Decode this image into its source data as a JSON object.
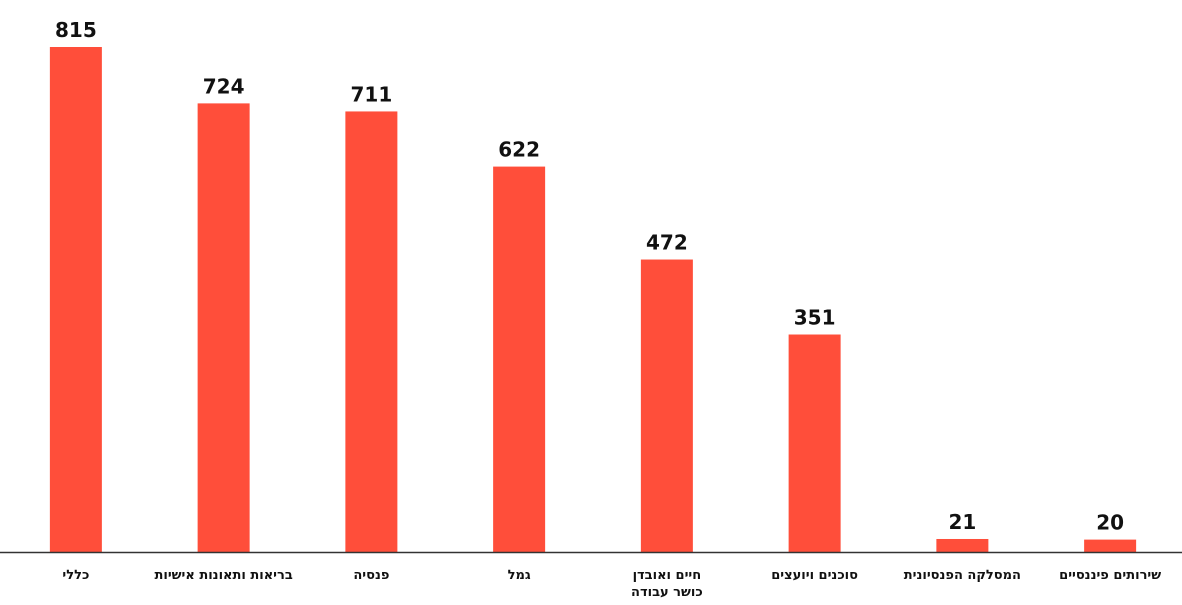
{
  "chart_data": {
    "type": "bar",
    "categories": [
      [
        "כללי"
      ],
      [
        "בריאות ותאונות אישיות"
      ],
      [
        "פנסיה"
      ],
      [
        "גמל"
      ],
      [
        "חיים ואובדן",
        "כושר עבודה"
      ],
      [
        "סוכנים ויועצים"
      ],
      [
        "המסלקה הפנסיונית"
      ],
      [
        "שירותים פיננסיים"
      ]
    ],
    "values": [
      815,
      724,
      711,
      622,
      472,
      351,
      21,
      20
    ],
    "value_labels": [
      "815",
      "724",
      "711",
      "622",
      "472",
      "351",
      "21",
      "20"
    ],
    "title": "",
    "xlabel": "",
    "ylabel": "",
    "ylim": [
      0,
      815
    ],
    "grid": false,
    "legend": "none",
    "colors": {
      "bar": "#FF4E3A",
      "axis": "#333333",
      "text": "#111111"
    }
  }
}
